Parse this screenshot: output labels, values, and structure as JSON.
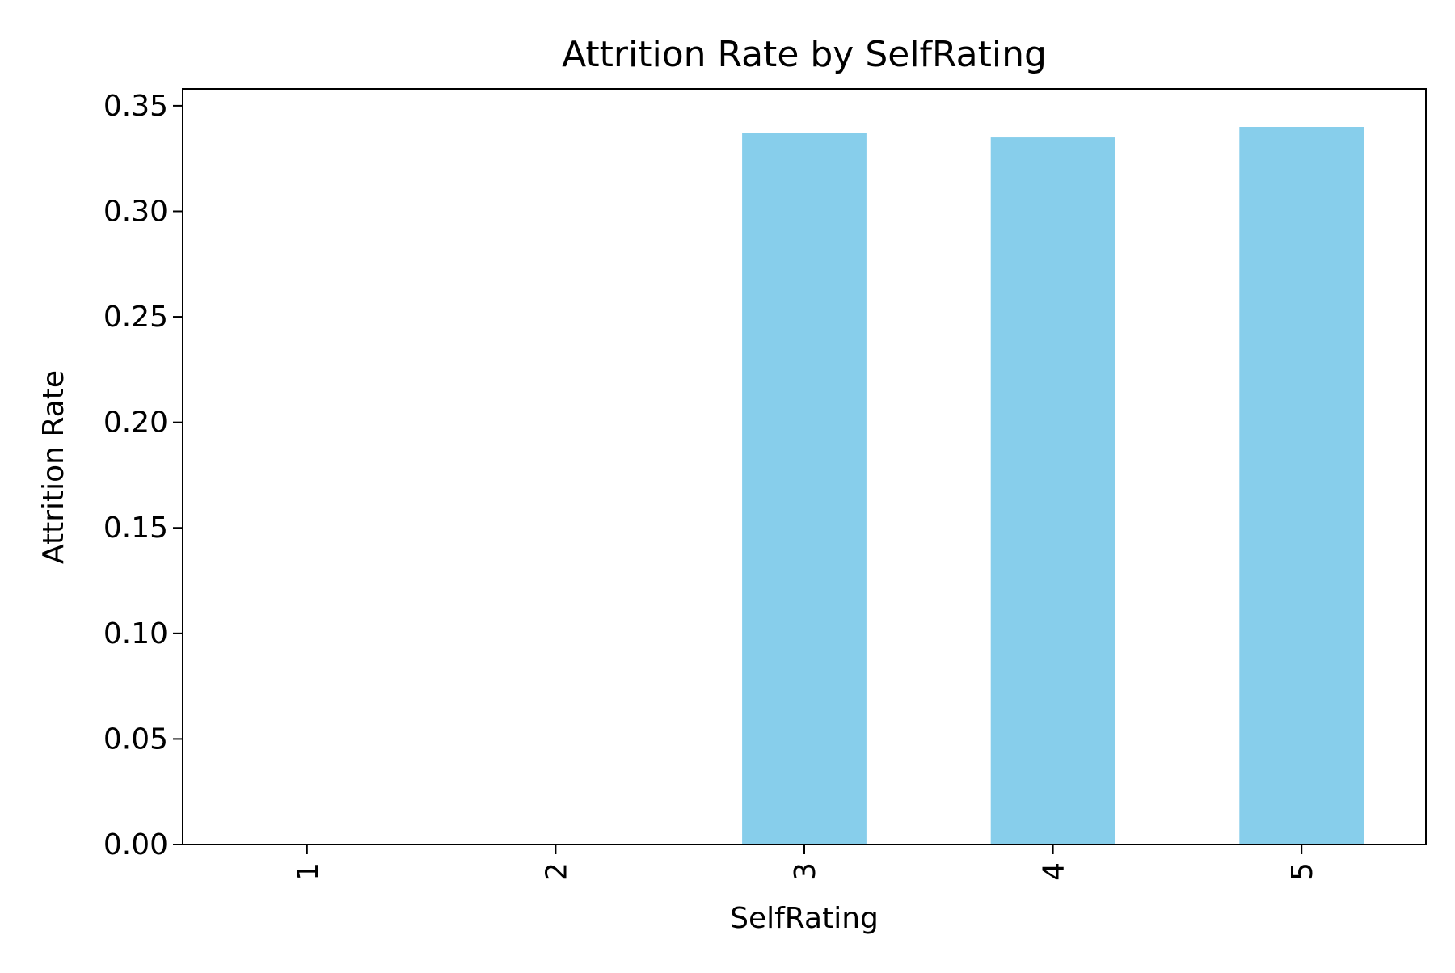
{
  "chart_data": {
    "type": "bar",
    "title": "Attrition Rate by SelfRating",
    "xlabel": "SelfRating",
    "ylabel": "Attrition Rate",
    "categories": [
      "1",
      "2",
      "3",
      "4",
      "5"
    ],
    "values": [
      0.0,
      0.0,
      0.337,
      0.335,
      0.34
    ],
    "ylim": [
      0,
      0.358
    ],
    "yticks": [
      "0.00",
      "0.05",
      "0.10",
      "0.15",
      "0.20",
      "0.25",
      "0.30",
      "0.35"
    ],
    "bar_color": "#87CEEB",
    "grid": false,
    "legend": "none"
  }
}
